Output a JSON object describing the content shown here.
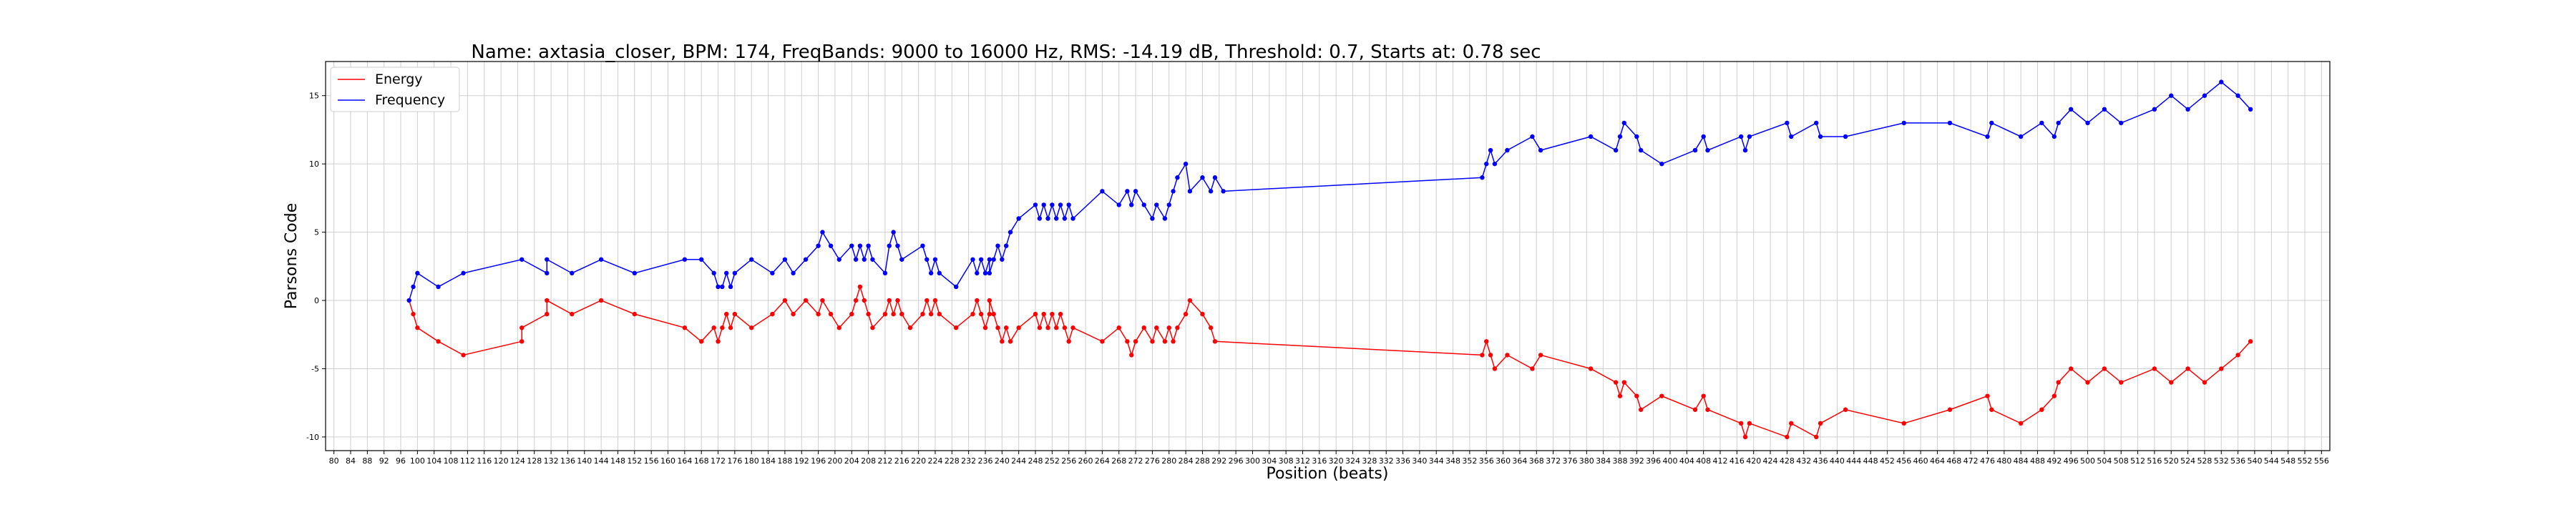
{
  "chart_data": {
    "type": "line",
    "title": "Name: axtasia_closer, BPM: 174, FreqBands: 9000 to 16000 Hz, RMS: -14.19 dB, Threshold: 0.7, Starts at: 0.78 sec",
    "xlabel": "Position (beats)",
    "ylabel": "Parsons Code",
    "xlim": [
      78,
      558
    ],
    "ylim": [
      -11,
      17.5
    ],
    "x_ticks": [
      80,
      84,
      88,
      92,
      96,
      100,
      104,
      108,
      112,
      116,
      120,
      124,
      128,
      132,
      136,
      140,
      144,
      148,
      152,
      156,
      160,
      164,
      168,
      172,
      176,
      180,
      184,
      188,
      192,
      196,
      200,
      204,
      208,
      212,
      216,
      220,
      224,
      228,
      232,
      236,
      240,
      244,
      248,
      252,
      256,
      260,
      264,
      268,
      272,
      276,
      280,
      284,
      288,
      292,
      296,
      300,
      304,
      308,
      312,
      316,
      320,
      324,
      328,
      332,
      336,
      340,
      344,
      348,
      352,
      356,
      360,
      364,
      368,
      372,
      376,
      380,
      384,
      388,
      392,
      396,
      400,
      404,
      408,
      412,
      416,
      420,
      424,
      428,
      432,
      436,
      440,
      444,
      448,
      452,
      456,
      460,
      464,
      468,
      472,
      476,
      480,
      484,
      488,
      492,
      496,
      500,
      504,
      508,
      512,
      516,
      520,
      524,
      528,
      532,
      536,
      540,
      544,
      548,
      552,
      556
    ],
    "y_ticks": [
      -10,
      -5,
      0,
      5,
      10,
      15
    ],
    "grid": true,
    "legend_position": "top-left",
    "series": [
      {
        "name": "Energy",
        "color": "#ff0000",
        "points": [
          [
            98,
            0
          ],
          [
            99,
            -1
          ],
          [
            100,
            -2
          ],
          [
            105,
            -3
          ],
          [
            111,
            -4
          ],
          [
            125,
            -3
          ],
          [
            125,
            -2
          ],
          [
            131,
            -1
          ],
          [
            131,
            0
          ],
          [
            137,
            -1
          ],
          [
            144,
            0
          ],
          [
            152,
            -1
          ],
          [
            164,
            -2
          ],
          [
            168,
            -3
          ],
          [
            171,
            -2
          ],
          [
            172,
            -3
          ],
          [
            173,
            -2
          ],
          [
            174,
            -1
          ],
          [
            175,
            -2
          ],
          [
            176,
            -1
          ],
          [
            180,
            -2
          ],
          [
            185,
            -1
          ],
          [
            188,
            0
          ],
          [
            190,
            -1
          ],
          [
            193,
            0
          ],
          [
            196,
            -1
          ],
          [
            197,
            0
          ],
          [
            199,
            -1
          ],
          [
            201,
            -2
          ],
          [
            204,
            -1
          ],
          [
            205,
            0
          ],
          [
            206,
            1
          ],
          [
            207,
            0
          ],
          [
            208,
            -1
          ],
          [
            209,
            -2
          ],
          [
            212,
            -1
          ],
          [
            213,
            0
          ],
          [
            214,
            -1
          ],
          [
            215,
            0
          ],
          [
            216,
            -1
          ],
          [
            218,
            -2
          ],
          [
            221,
            -1
          ],
          [
            222,
            0
          ],
          [
            223,
            -1
          ],
          [
            224,
            0
          ],
          [
            225,
            -1
          ],
          [
            229,
            -2
          ],
          [
            233,
            -1
          ],
          [
            234,
            0
          ],
          [
            235,
            -1
          ],
          [
            236,
            -2
          ],
          [
            237,
            -1
          ],
          [
            237,
            0
          ],
          [
            238,
            -1
          ],
          [
            239,
            -2
          ],
          [
            240,
            -3
          ],
          [
            241,
            -2
          ],
          [
            242,
            -3
          ],
          [
            244,
            -2
          ],
          [
            248,
            -1
          ],
          [
            249,
            -2
          ],
          [
            250,
            -1
          ],
          [
            251,
            -2
          ],
          [
            252,
            -1
          ],
          [
            253,
            -2
          ],
          [
            254,
            -1
          ],
          [
            255,
            -2
          ],
          [
            256,
            -3
          ],
          [
            257,
            -2
          ],
          [
            264,
            -3
          ],
          [
            268,
            -2
          ],
          [
            270,
            -3
          ],
          [
            271,
            -4
          ],
          [
            272,
            -3
          ],
          [
            274,
            -2
          ],
          [
            276,
            -3
          ],
          [
            277,
            -2
          ],
          [
            279,
            -3
          ],
          [
            280,
            -2
          ],
          [
            281,
            -3
          ],
          [
            282,
            -2
          ],
          [
            284,
            -1
          ],
          [
            285,
            0
          ],
          [
            288,
            -1
          ],
          [
            290,
            -2
          ],
          [
            291,
            -3
          ],
          [
            355,
            -4
          ],
          [
            356,
            -3
          ],
          [
            357,
            -4
          ],
          [
            358,
            -5
          ],
          [
            361,
            -4
          ],
          [
            367,
            -5
          ],
          [
            369,
            -4
          ],
          [
            381,
            -5
          ],
          [
            387,
            -6
          ],
          [
            388,
            -7
          ],
          [
            389,
            -6
          ],
          [
            392,
            -7
          ],
          [
            393,
            -8
          ],
          [
            398,
            -7
          ],
          [
            406,
            -8
          ],
          [
            408,
            -7
          ],
          [
            409,
            -8
          ],
          [
            417,
            -9
          ],
          [
            418,
            -10
          ],
          [
            419,
            -9
          ],
          [
            428,
            -10
          ],
          [
            429,
            -9
          ],
          [
            435,
            -10
          ],
          [
            436,
            -9
          ],
          [
            442,
            -8
          ],
          [
            456,
            -9
          ],
          [
            467,
            -8
          ],
          [
            476,
            -7
          ],
          [
            477,
            -8
          ],
          [
            484,
            -9
          ],
          [
            489,
            -8
          ],
          [
            492,
            -7
          ],
          [
            493,
            -6
          ],
          [
            496,
            -5
          ],
          [
            500,
            -6
          ],
          [
            504,
            -5
          ],
          [
            508,
            -6
          ],
          [
            516,
            -5
          ],
          [
            520,
            -6
          ],
          [
            524,
            -5
          ],
          [
            528,
            -6
          ],
          [
            532,
            -5
          ],
          [
            536,
            -4
          ],
          [
            539,
            -3
          ]
        ]
      },
      {
        "name": "Frequency",
        "color": "#0000ff",
        "points": [
          [
            98,
            0
          ],
          [
            99,
            1
          ],
          [
            100,
            2
          ],
          [
            105,
            1
          ],
          [
            111,
            2
          ],
          [
            125,
            3
          ],
          [
            131,
            2
          ],
          [
            131,
            3
          ],
          [
            137,
            2
          ],
          [
            144,
            3
          ],
          [
            152,
            2
          ],
          [
            164,
            3
          ],
          [
            168,
            3
          ],
          [
            171,
            2
          ],
          [
            172,
            1
          ],
          [
            173,
            1
          ],
          [
            174,
            2
          ],
          [
            175,
            1
          ],
          [
            176,
            2
          ],
          [
            180,
            3
          ],
          [
            185,
            2
          ],
          [
            188,
            3
          ],
          [
            190,
            2
          ],
          [
            193,
            3
          ],
          [
            196,
            4
          ],
          [
            197,
            5
          ],
          [
            199,
            4
          ],
          [
            201,
            3
          ],
          [
            204,
            4
          ],
          [
            205,
            3
          ],
          [
            206,
            4
          ],
          [
            207,
            3
          ],
          [
            208,
            4
          ],
          [
            209,
            3
          ],
          [
            212,
            2
          ],
          [
            213,
            4
          ],
          [
            214,
            5
          ],
          [
            215,
            4
          ],
          [
            216,
            3
          ],
          [
            221,
            4
          ],
          [
            222,
            3
          ],
          [
            223,
            2
          ],
          [
            224,
            3
          ],
          [
            225,
            2
          ],
          [
            229,
            1
          ],
          [
            233,
            3
          ],
          [
            234,
            2
          ],
          [
            235,
            3
          ],
          [
            236,
            2
          ],
          [
            237,
            3
          ],
          [
            237,
            2
          ],
          [
            238,
            3
          ],
          [
            239,
            4
          ],
          [
            240,
            3
          ],
          [
            241,
            4
          ],
          [
            242,
            5
          ],
          [
            244,
            6
          ],
          [
            248,
            7
          ],
          [
            249,
            6
          ],
          [
            250,
            7
          ],
          [
            251,
            6
          ],
          [
            252,
            7
          ],
          [
            253,
            6
          ],
          [
            254,
            7
          ],
          [
            255,
            6
          ],
          [
            256,
            7
          ],
          [
            257,
            6
          ],
          [
            264,
            8
          ],
          [
            268,
            7
          ],
          [
            270,
            8
          ],
          [
            271,
            7
          ],
          [
            272,
            8
          ],
          [
            274,
            7
          ],
          [
            276,
            6
          ],
          [
            277,
            7
          ],
          [
            279,
            6
          ],
          [
            280,
            7
          ],
          [
            281,
            8
          ],
          [
            282,
            9
          ],
          [
            284,
            10
          ],
          [
            285,
            8
          ],
          [
            288,
            9
          ],
          [
            290,
            8
          ],
          [
            291,
            9
          ],
          [
            293,
            8
          ],
          [
            355,
            9
          ],
          [
            356,
            10
          ],
          [
            357,
            11
          ],
          [
            358,
            10
          ],
          [
            361,
            11
          ],
          [
            367,
            12
          ],
          [
            369,
            11
          ],
          [
            381,
            12
          ],
          [
            387,
            11
          ],
          [
            388,
            12
          ],
          [
            389,
            13
          ],
          [
            392,
            12
          ],
          [
            393,
            11
          ],
          [
            398,
            10
          ],
          [
            406,
            11
          ],
          [
            408,
            12
          ],
          [
            409,
            11
          ],
          [
            417,
            12
          ],
          [
            418,
            11
          ],
          [
            419,
            12
          ],
          [
            428,
            13
          ],
          [
            429,
            12
          ],
          [
            435,
            13
          ],
          [
            436,
            12
          ],
          [
            442,
            12
          ],
          [
            456,
            13
          ],
          [
            467,
            13
          ],
          [
            476,
            12
          ],
          [
            477,
            13
          ],
          [
            484,
            12
          ],
          [
            489,
            13
          ],
          [
            492,
            12
          ],
          [
            493,
            13
          ],
          [
            496,
            14
          ],
          [
            500,
            13
          ],
          [
            504,
            14
          ],
          [
            508,
            13
          ],
          [
            516,
            14
          ],
          [
            520,
            15
          ],
          [
            524,
            14
          ],
          [
            528,
            15
          ],
          [
            532,
            16
          ],
          [
            536,
            15
          ],
          [
            539,
            14
          ]
        ]
      }
    ]
  }
}
